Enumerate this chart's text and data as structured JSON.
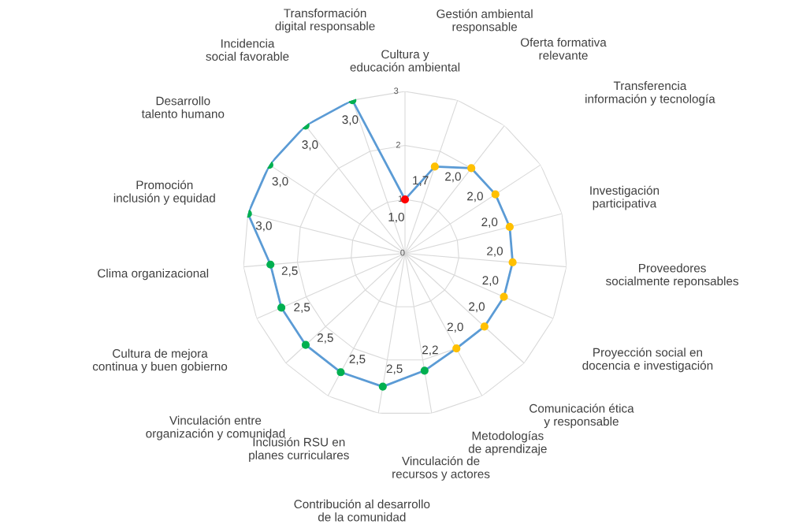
{
  "chart_data": {
    "type": "radar",
    "categories": [
      "Cultura y educación ambiental",
      "Gestión ambiental responsable",
      "Oferta formativa relevante",
      "Transferencia información y tecnología",
      "Investigación participativa",
      "Proveedores socialmente reponsables",
      "Proyección social en docencia e investigación",
      "Comunicación ética y responsable",
      "Metodologías de aprendizaje",
      "Vinculación de recursos y actores",
      "Contribución al desarrollo de la comunidad",
      "Inclusión RSU en planes curriculares",
      "Vinculación entre organización y comunidad",
      "Cultura de mejora continua y buen gobierno",
      "Clima organizacional",
      "Promoción inclusión y equidad",
      "Desarrollo talento humano",
      "Incidencia social favorable",
      "Transformación digital responsable"
    ],
    "series": [
      {
        "color": "#5b9bd5",
        "values": [
          1.0,
          1.7,
          2.0,
          2.0,
          2.0,
          2.0,
          2.0,
          2.0,
          2.0,
          2.2,
          2.5,
          2.5,
          2.5,
          2.5,
          2.5,
          3.0,
          3.0,
          3.0,
          3.0
        ],
        "colors": [
          "#ff0000",
          "#ffc000",
          "#ffc000",
          "#ffc000",
          "#ffc000",
          "#ffc000",
          "#ffc000",
          "#ffc000",
          "#ffc000",
          "#00b050",
          "#00b050",
          "#00b050",
          "#00b050",
          "#00b050",
          "#00b050",
          "#00b050",
          "#00b050",
          "#00b050",
          "#00b050"
        ],
        "value_labels": [
          "1,0",
          "1,7",
          "2,0",
          "2,0",
          "2,0",
          "2,0",
          "2,0",
          "2,0",
          "2,0",
          "2,2",
          "2,5",
          "2,5",
          "2,5",
          "2,5",
          "2,5",
          "3,0",
          "3,0",
          "3,0",
          "3,0"
        ]
      }
    ],
    "ylim": [
      0,
      3
    ],
    "yticks": [
      0,
      1,
      2,
      3
    ],
    "grid": true,
    "marker": "circle"
  }
}
